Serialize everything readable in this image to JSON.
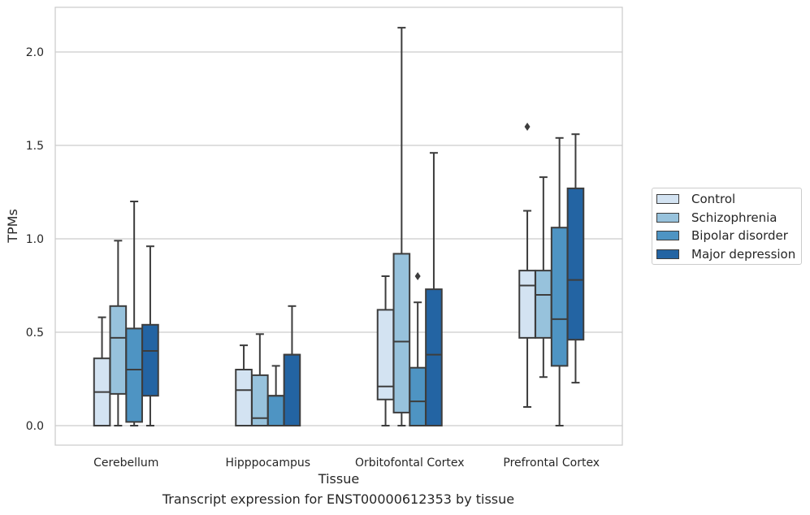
{
  "caption": "Transcript expression for ENST00000612353 by tissue",
  "chart_data": {
    "type": "box",
    "title": "",
    "xlabel": "Tissue",
    "ylabel": "TPMs",
    "ylim": [
      -0.1,
      2.25
    ],
    "yticks": [
      "0.0",
      "0.5",
      "1.0",
      "1.5",
      "2.0"
    ],
    "grid": true,
    "legend_position": "right",
    "categories": [
      "Cerebellum",
      "Hipppocampus",
      "Orbitofontal Cortex",
      "Prefrontal Cortex"
    ],
    "colors": [
      "#d3e3f2",
      "#97c2dc",
      "#4e94c3",
      "#2364a3"
    ],
    "series": [
      {
        "name": "Control",
        "boxes": [
          {
            "whisker_low": 0.0,
            "q1": 0.0,
            "median": 0.18,
            "q3": 0.36,
            "whisker_high": 0.58,
            "outliers": []
          },
          {
            "whisker_low": 0.0,
            "q1": 0.0,
            "median": 0.19,
            "q3": 0.3,
            "whisker_high": 0.43,
            "outliers": []
          },
          {
            "whisker_low": 0.0,
            "q1": 0.14,
            "median": 0.21,
            "q3": 0.62,
            "whisker_high": 0.8,
            "outliers": []
          },
          {
            "whisker_low": 0.1,
            "q1": 0.47,
            "median": 0.75,
            "q3": 0.83,
            "whisker_high": 1.15,
            "outliers": [
              1.6
            ]
          }
        ]
      },
      {
        "name": "Schizophrenia",
        "boxes": [
          {
            "whisker_low": 0.0,
            "q1": 0.17,
            "median": 0.47,
            "q3": 0.64,
            "whisker_high": 0.99,
            "outliers": []
          },
          {
            "whisker_low": 0.0,
            "q1": 0.0,
            "median": 0.04,
            "q3": 0.27,
            "whisker_high": 0.49,
            "outliers": []
          },
          {
            "whisker_low": 0.0,
            "q1": 0.07,
            "median": 0.45,
            "q3": 0.92,
            "whisker_high": 2.13,
            "outliers": []
          },
          {
            "whisker_low": 0.26,
            "q1": 0.47,
            "median": 0.7,
            "q3": 0.83,
            "whisker_high": 1.33,
            "outliers": []
          }
        ]
      },
      {
        "name": "Bipolar disorder",
        "boxes": [
          {
            "whisker_low": 0.0,
            "q1": 0.02,
            "median": 0.3,
            "q3": 0.52,
            "whisker_high": 1.2,
            "outliers": []
          },
          {
            "whisker_low": 0.0,
            "q1": 0.0,
            "median": 0.16,
            "q3": 0.16,
            "whisker_high": 0.32,
            "outliers": []
          },
          {
            "whisker_low": 0.0,
            "q1": 0.0,
            "median": 0.13,
            "q3": 0.31,
            "whisker_high": 0.66,
            "outliers": [
              0.8
            ]
          },
          {
            "whisker_low": 0.0,
            "q1": 0.32,
            "median": 0.57,
            "q3": 1.06,
            "whisker_high": 1.54,
            "outliers": []
          }
        ]
      },
      {
        "name": "Major depression",
        "boxes": [
          {
            "whisker_low": 0.0,
            "q1": 0.16,
            "median": 0.4,
            "q3": 0.54,
            "whisker_high": 0.96,
            "outliers": []
          },
          {
            "whisker_low": 0.0,
            "q1": 0.0,
            "median": 0.38,
            "q3": 0.38,
            "whisker_high": 0.64,
            "outliers": []
          },
          {
            "whisker_low": 0.0,
            "q1": 0.0,
            "median": 0.38,
            "q3": 0.73,
            "whisker_high": 1.46,
            "outliers": []
          },
          {
            "whisker_low": 0.23,
            "q1": 0.46,
            "median": 0.78,
            "q3": 1.27,
            "whisker_high": 1.56,
            "outliers": []
          }
        ]
      }
    ]
  }
}
